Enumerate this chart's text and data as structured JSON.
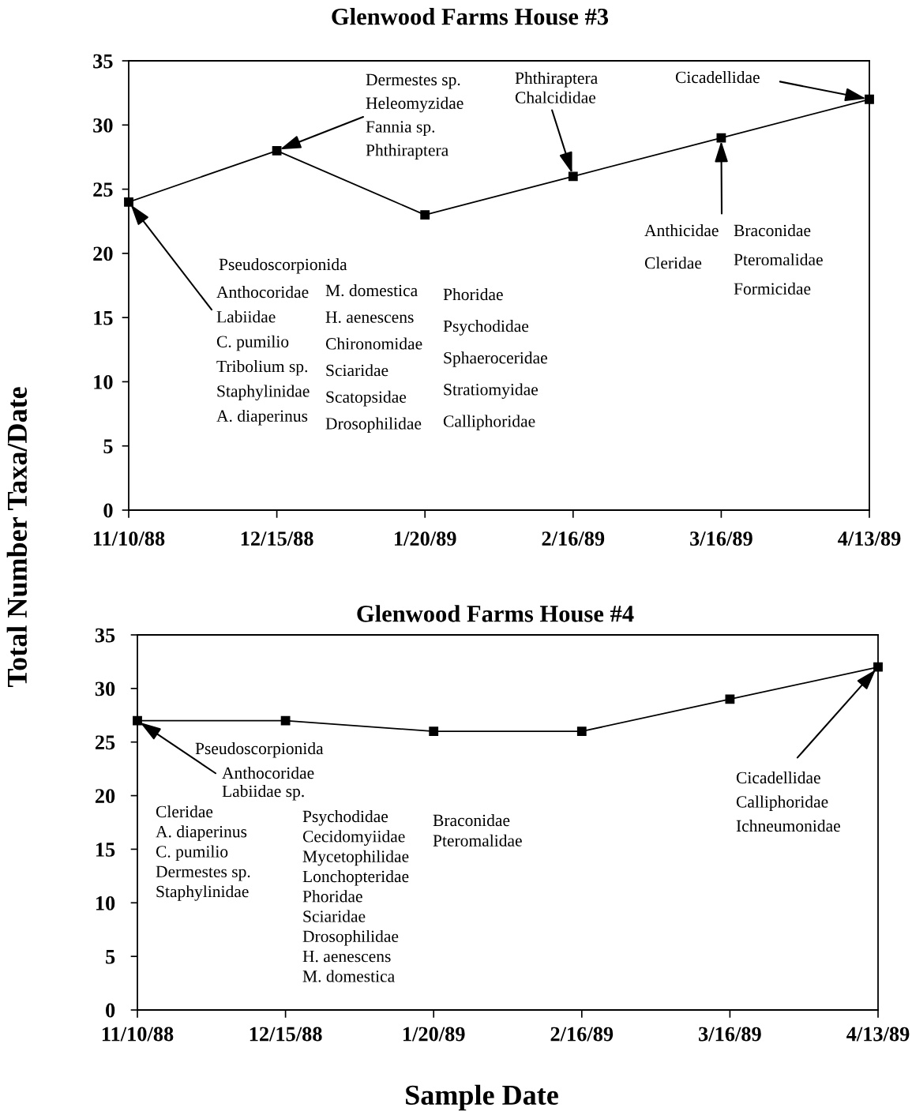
{
  "chart_data": [
    {
      "type": "line",
      "title": "Glenwood Farms House #3",
      "ylabel": "Total Number Taxa/Date",
      "categories": [
        "11/10/88",
        "12/15/88",
        "1/20/89",
        "2/16/89",
        "3/16/89",
        "4/13/89"
      ],
      "values": [
        24,
        28,
        23,
        26,
        29,
        32
      ],
      "color": "#000000",
      "marker": "square",
      "line_style": "solid",
      "grid": false,
      "ylim": [
        0,
        35
      ],
      "yticks": [
        0,
        5,
        10,
        15,
        20,
        25,
        30,
        35
      ],
      "annotations": [
        {
          "text": "Dermestes sp.\nHeleomyzidae\nFannia sp.\nPhthiraptera",
          "x": "12/15/88",
          "y": 28
        },
        "Pseudoscorpionida",
        {
          "text": "Anthocoridae\nLabiidae\nC. pumilio\nTribolium sp.\nStaphylinidae\nA. diaperinus",
          "x": "11/10/88",
          "y": 24
        },
        "M. domestica\nH. aenescens\nChironomidae\nSciaridae\nScatopsidae\nDrosophilidae",
        "Phoridae\nPsychodidae\nSphaeroceridae\nStratiomyidae\nCalliphoridae",
        {
          "text": "Phthiraptera\nChalcididae",
          "x": "2/16/89",
          "y": 26
        },
        {
          "text": "Cicadellidae",
          "x": "4/13/89",
          "y": 32
        },
        "Anthicidae\nCleridae",
        {
          "text": "Braconidae\nPteromalidae\nFormicidae",
          "x": "3/16/89",
          "y": 29
        }
      ]
    },
    {
      "type": "line",
      "title": "Glenwood Farms House #4",
      "xlabel": "Sample Date",
      "categories": [
        "11/10/88",
        "12/15/88",
        "1/20/89",
        "2/16/89",
        "3/16/89",
        "4/13/89"
      ],
      "values": [
        27,
        27,
        26,
        26,
        29,
        32
      ],
      "color": "#000000",
      "marker": "square",
      "line_style": "solid",
      "grid": false,
      "ylim": [
        0,
        35
      ],
      "yticks": [
        0,
        5,
        10,
        15,
        20,
        25,
        30,
        35
      ],
      "annotations": [
        "Pseudoscorpionida",
        {
          "text": "Anthocoridae\nLabiidae sp.",
          "x": "11/10/88",
          "y": 27
        },
        "Cleridae\nA. diaperinus\nC. pumilio\nDermestes sp.\nStaphylinidae",
        "Psychodidae\nCecidomyiidae\nMycetophilidae\nLonchopteridae\nPhoridae\nSciaridae\nDrosophilidae\nH. aenescens\nM. domestica",
        "Braconidae\nPteromalidae",
        {
          "text": "Cicadellidae\nCalliphoridae\nIchneumonidae",
          "x": "4/13/89",
          "y": 32
        }
      ]
    }
  ]
}
